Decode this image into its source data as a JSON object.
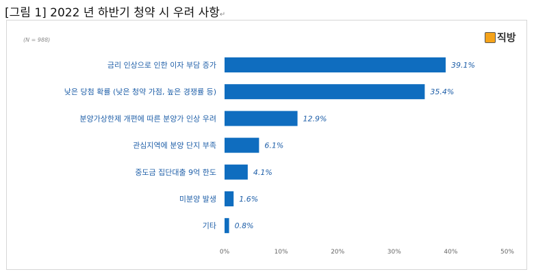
{
  "title": "[그림 1] 2022 년 하반기 청약 시 우려 사항",
  "logo": "직방",
  "chart_data": {
    "type": "bar",
    "orientation": "horizontal",
    "note": "(N = 988)",
    "categories": [
      "금리 인상으로 인한 이자 부담 증가",
      "낮은 당첨 확률 (낮은 청약 가점, 높은 경쟁률 등)",
      "분양가상한제 개편에 따른 분양가 인상 우려",
      "관심지역에 분양 단지 부족",
      "중도금 집단대출 9억 한도",
      "미분양 발생",
      "기타"
    ],
    "values": [
      39.1,
      35.4,
      12.9,
      6.1,
      4.1,
      1.6,
      0.8
    ],
    "value_labels": [
      "39.1%",
      "35.4%",
      "12.9%",
      "6.1%",
      "4.1%",
      "1.6%",
      "0.8%"
    ],
    "xlim": [
      0,
      50
    ],
    "ticks": [
      "0%",
      "10%",
      "20%",
      "30%",
      "40%",
      "50%"
    ],
    "bar_color": "#0f6dbf",
    "grid": false
  }
}
